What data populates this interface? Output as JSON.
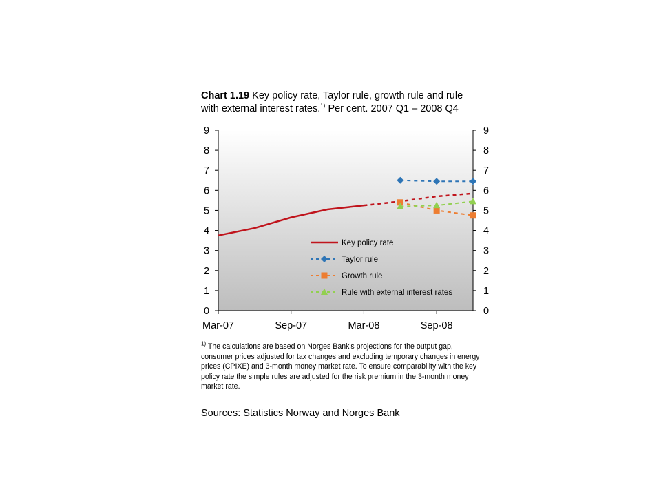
{
  "title": {
    "prefix": "Chart 1.19",
    "line1": "Key policy rate, Taylor rule, growth rule and rule",
    "line2_before": "with external interest rates.",
    "sup": "1)",
    "line2_after": "Per cent. 2007 Q1 – 2008 Q4"
  },
  "footnote": {
    "marker": "1)",
    "text": "The calculations are based on Norges Bank's projections for the output gap, consumer prices adjusted for tax changes and excluding temporary changes in energy prices (CPIXE) and 3-month money market rate. To ensure comparability with the key policy rate the simple rules are adjusted for the risk premium in the 3-month money market rate."
  },
  "sources": "Sources: Statistics Norway and Norges Bank",
  "chart_data": {
    "type": "line",
    "x_tick_labels": [
      "Mar-07",
      "Sep-07",
      "Mar-08",
      "Sep-08"
    ],
    "x_ticks": [
      "2007-03",
      "2007-09",
      "2008-03",
      "2008-09"
    ],
    "ylim": [
      0,
      9
    ],
    "y_ticks": [
      0,
      1,
      2,
      3,
      4,
      5,
      6,
      7,
      8,
      9
    ],
    "right_axis": true,
    "grid": false,
    "legend_position": "bottom-right (inside plot)",
    "series": [
      {
        "name": "Key policy rate",
        "color": "#c0141c",
        "x": [
          "2007-03",
          "2007-06",
          "2007-09",
          "2007-12",
          "2008-03",
          "2008-06",
          "2008-09",
          "2008-12"
        ],
        "y": [
          3.75,
          4.12,
          4.65,
          5.05,
          5.25,
          5.45,
          5.7,
          5.85
        ],
        "style_segments": [
          {
            "from": "2007-03",
            "to": "2008-03",
            "dash": false
          },
          {
            "from": "2008-03",
            "to": "2008-12",
            "dash": true
          }
        ]
      },
      {
        "name": "Taylor rule",
        "color": "#2e75b6",
        "marker": "diamond",
        "dash": true,
        "x": [
          "2008-06",
          "2008-09",
          "2008-12"
        ],
        "y": [
          6.5,
          6.45,
          6.45
        ]
      },
      {
        "name": "Growth rule",
        "color": "#ed7d31",
        "marker": "square",
        "dash": true,
        "x": [
          "2008-06",
          "2008-09",
          "2008-12"
        ],
        "y": [
          5.4,
          5.0,
          4.75
        ]
      },
      {
        "name": "Rule with external interest rates",
        "color": "#92d050",
        "marker": "triangle",
        "dash": true,
        "x": [
          "2008-06",
          "2008-09",
          "2008-12"
        ],
        "y": [
          5.2,
          5.25,
          5.45
        ]
      }
    ]
  }
}
